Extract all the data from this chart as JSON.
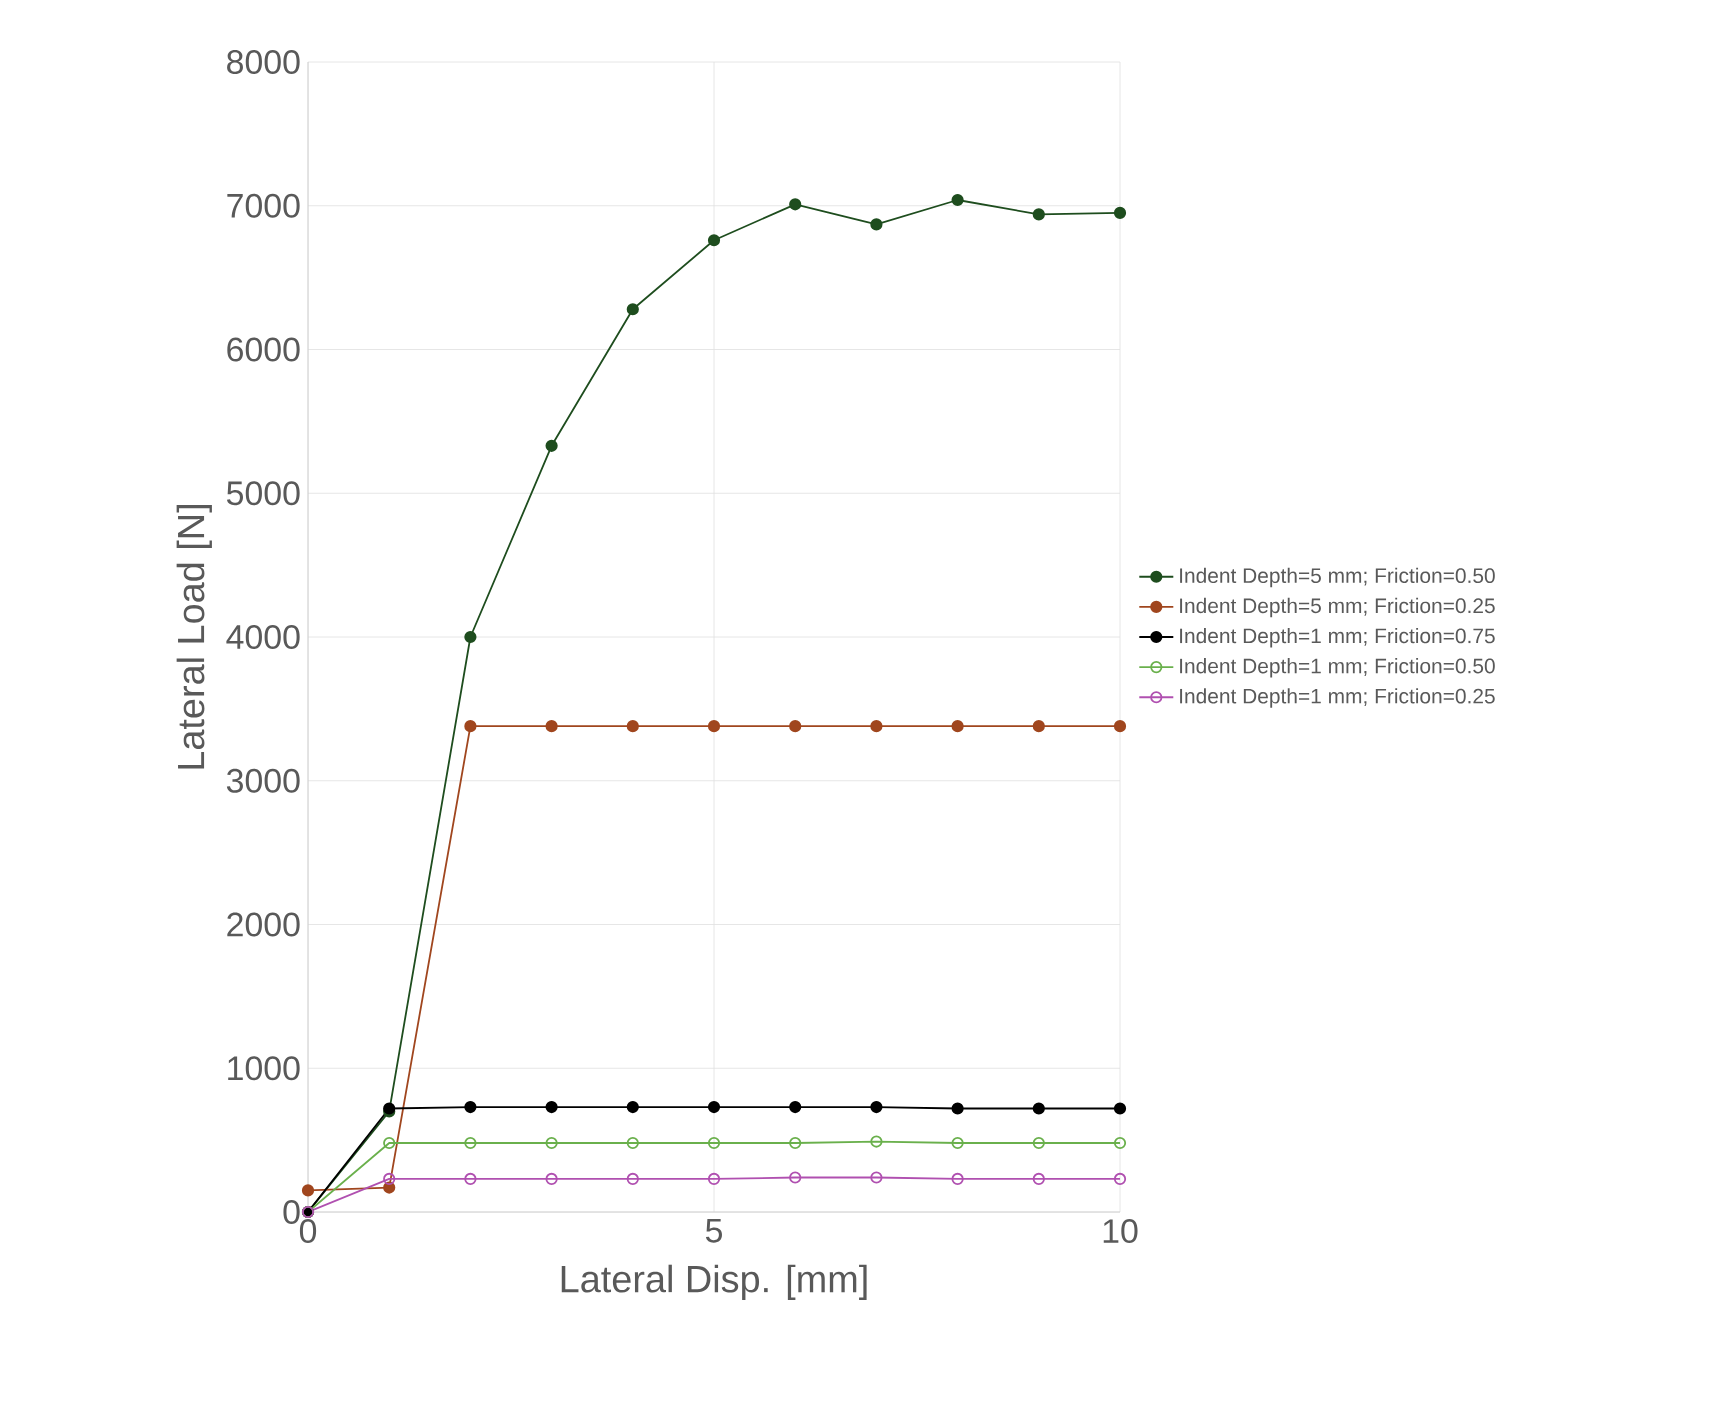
{
  "chart_data": {
    "type": "line",
    "xlabel": "Lateral Disp. [mm]",
    "ylabel": "Lateral Load [N]",
    "x": [
      0,
      1,
      2,
      3,
      4,
      5,
      6,
      7,
      8,
      9,
      10
    ],
    "series": [
      {
        "name": "Indent Depth=5 mm; Friction=0.50",
        "color": "#1e4d1e",
        "marker": "circle",
        "values": [
          0,
          700,
          4000,
          5330,
          6280,
          6760,
          7010,
          6870,
          7040,
          6940,
          6950
        ]
      },
      {
        "name": "Indent Depth=5 mm; Friction=0.25",
        "color": "#a0461e",
        "marker": "circle",
        "values": [
          150,
          170,
          3380,
          3380,
          3380,
          3380,
          3380,
          3380,
          3380,
          3380,
          3380
        ]
      },
      {
        "name": "Indent Depth=1 mm; Friction=0.75",
        "color": "#000000",
        "marker": "circle",
        "values": [
          0,
          720,
          730,
          730,
          730,
          730,
          730,
          730,
          720,
          720,
          720
        ]
      },
      {
        "name": "Indent Depth=1 mm; Friction=0.50",
        "color": "#6ab04c",
        "marker": "open circle",
        "values": [
          0,
          480,
          480,
          480,
          480,
          480,
          480,
          490,
          480,
          480,
          480
        ]
      },
      {
        "name": "Indent Depth=1 mm; Friction=0.25",
        "color": "#b050b0",
        "marker": "open circle",
        "values": [
          0,
          230,
          230,
          230,
          230,
          230,
          240,
          240,
          230,
          230,
          230
        ]
      }
    ],
    "xlim": [
      0,
      10
    ],
    "ylim": [
      0,
      8000
    ],
    "xticks": [
      0,
      5,
      10
    ],
    "yticks": [
      0,
      1000,
      2000,
      3000,
      4000,
      5000,
      6000,
      7000,
      8000
    ],
    "grid": true,
    "legend": "right",
    "line_style": "solid"
  }
}
